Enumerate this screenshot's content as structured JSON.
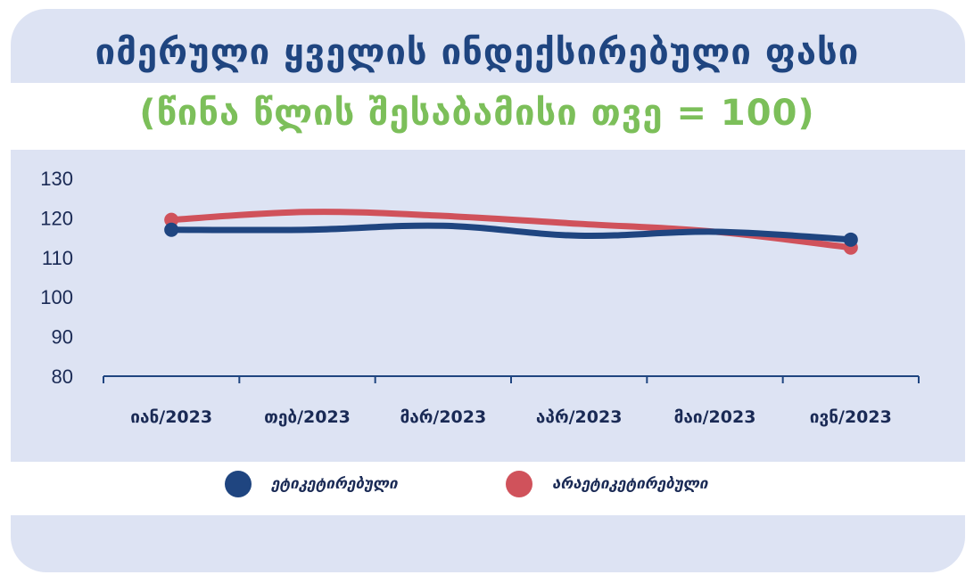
{
  "chart_data": {
    "type": "line",
    "title": "იმერული ყველის ინდექსირებული ფასი",
    "subtitle": "(წინა წლის შესაბამისი თვე = 100)",
    "categories": [
      "იან/2023",
      "თებ/2023",
      "მარ/2023",
      "აპრ/2023",
      "მაი/2023",
      "ივნ/2023"
    ],
    "ylim": [
      80,
      130
    ],
    "yticks": [
      80,
      90,
      100,
      110,
      120,
      130
    ],
    "series": [
      {
        "name": "ეტიკეტირებული",
        "color": "#1f4580",
        "values": [
          117,
          117,
          118,
          115.5,
          116.5,
          114.5
        ]
      },
      {
        "name": "არაეტიკეტირებული",
        "color": "#d0525b",
        "values": [
          119.5,
          121.5,
          120.5,
          118.5,
          116.5,
          112.5
        ]
      }
    ],
    "legend_position": "bottom"
  }
}
